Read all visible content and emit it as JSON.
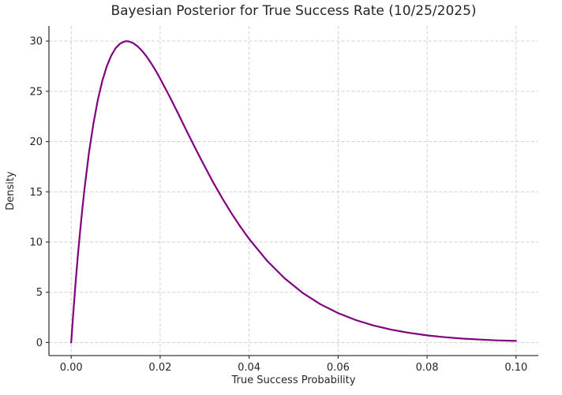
{
  "colors": {
    "background": "#ffffff",
    "spine": "#3a3a3a",
    "tick": "#3a3a3a",
    "grid": "#cccccc",
    "text": "#262626",
    "curve": "#800080"
  },
  "chart_data": {
    "type": "line",
    "title": "Bayesian Posterior for True Success Rate (10/25/2025)",
    "xlabel": "True Success Probability",
    "ylabel": "Density",
    "xlim": [
      -0.005,
      0.105
    ],
    "ylim": [
      -1.3,
      31.5
    ],
    "grid": true,
    "grid_style": "dashed",
    "legend": false,
    "xticks": [
      {
        "value": 0.0,
        "label": "0.00"
      },
      {
        "value": 0.02,
        "label": "0.02"
      },
      {
        "value": 0.04,
        "label": "0.04"
      },
      {
        "value": 0.06,
        "label": "0.06"
      },
      {
        "value": 0.08,
        "label": "0.08"
      },
      {
        "value": 0.1,
        "label": "0.10"
      }
    ],
    "yticks": [
      {
        "value": 0,
        "label": "0"
      },
      {
        "value": 5,
        "label": "5"
      },
      {
        "value": 10,
        "label": "10"
      },
      {
        "value": 15,
        "label": "15"
      },
      {
        "value": 20,
        "label": "20"
      },
      {
        "value": 25,
        "label": "25"
      },
      {
        "value": 30,
        "label": "30"
      }
    ],
    "series": [
      {
        "name": "posterior-density",
        "color": "#800080",
        "line_width": 2.2,
        "points": [
          [
            0.0,
            0.0
          ],
          [
            0.0005,
            3.11
          ],
          [
            0.001,
            5.99
          ],
          [
            0.0015,
            8.63
          ],
          [
            0.002,
            11.06
          ],
          [
            0.0025,
            13.29
          ],
          [
            0.003,
            15.33
          ],
          [
            0.004,
            18.89
          ],
          [
            0.005,
            21.81
          ],
          [
            0.006,
            24.17
          ],
          [
            0.007,
            26.04
          ],
          [
            0.008,
            27.49
          ],
          [
            0.009,
            28.55
          ],
          [
            0.01,
            29.3
          ],
          [
            0.011,
            29.75
          ],
          [
            0.012,
            29.96
          ],
          [
            0.0125,
            29.99
          ],
          [
            0.013,
            29.96
          ],
          [
            0.014,
            29.78
          ],
          [
            0.015,
            29.45
          ],
          [
            0.016,
            29.0
          ],
          [
            0.017,
            28.43
          ],
          [
            0.018,
            27.78
          ],
          [
            0.019,
            27.06
          ],
          [
            0.02,
            26.27
          ],
          [
            0.022,
            24.59
          ],
          [
            0.024,
            22.82
          ],
          [
            0.026,
            21.02
          ],
          [
            0.028,
            19.25
          ],
          [
            0.03,
            17.53
          ],
          [
            0.032,
            15.88
          ],
          [
            0.034,
            14.33
          ],
          [
            0.036,
            12.88
          ],
          [
            0.038,
            11.54
          ],
          [
            0.04,
            10.31
          ],
          [
            0.044,
            8.15
          ],
          [
            0.048,
            6.38
          ],
          [
            0.052,
            4.95
          ],
          [
            0.056,
            3.82
          ],
          [
            0.06,
            2.93
          ],
          [
            0.064,
            2.23
          ],
          [
            0.068,
            1.69
          ],
          [
            0.072,
            1.27
          ],
          [
            0.076,
            0.96
          ],
          [
            0.08,
            0.71
          ],
          [
            0.084,
            0.53
          ],
          [
            0.088,
            0.39
          ],
          [
            0.092,
            0.29
          ],
          [
            0.096,
            0.21
          ],
          [
            0.1,
            0.16
          ]
        ]
      }
    ]
  }
}
